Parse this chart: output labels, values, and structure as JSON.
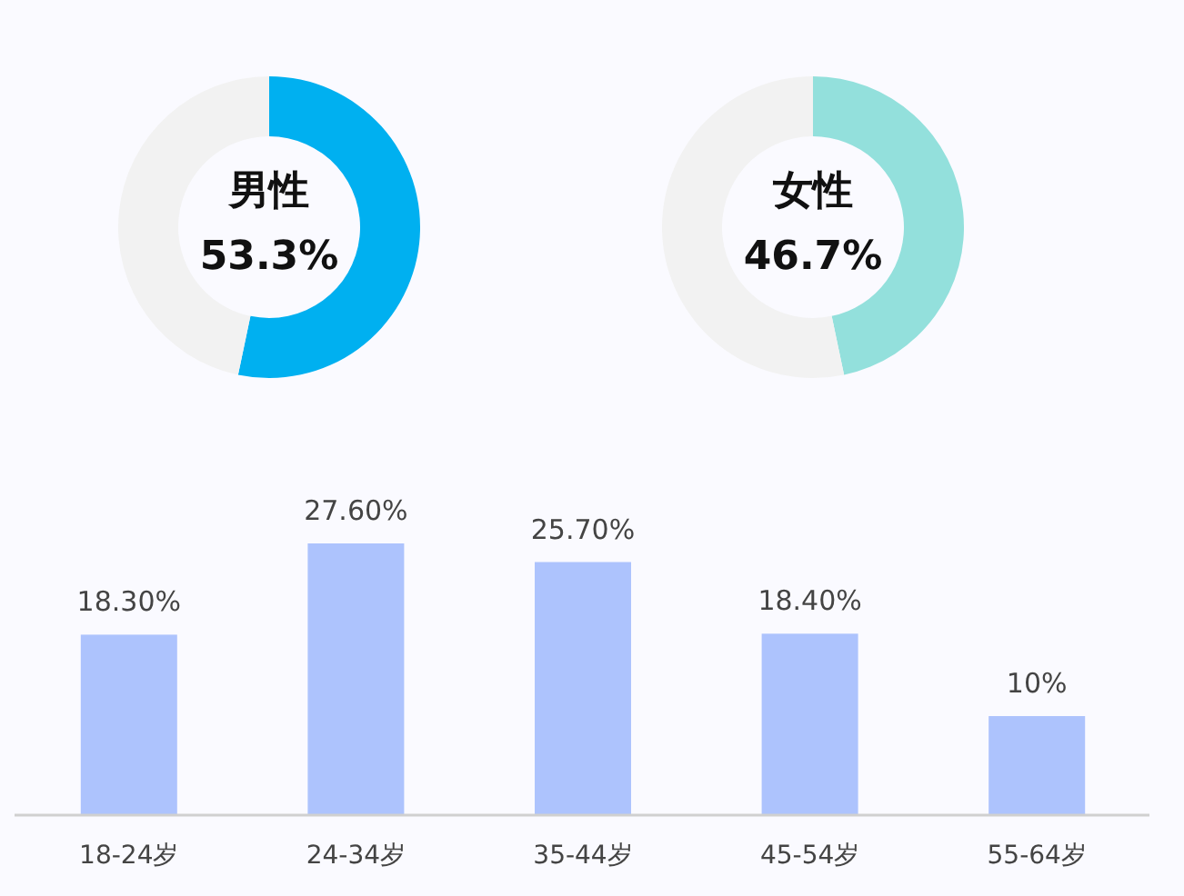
{
  "chart_data": [
    {
      "type": "donut",
      "categories": [
        "男性",
        null
      ],
      "values": [
        53.3,
        46.7
      ],
      "colors": [
        "#00b0f0",
        "#f2f2f2"
      ],
      "value_labels": [
        "53.3%",
        null
      ]
    },
    {
      "type": "donut",
      "categories": [
        "女性",
        null
      ],
      "values": [
        46.7,
        53.3
      ],
      "colors": [
        "#93e0dc",
        "#f2f2f2"
      ],
      "value_labels": [
        "46.7%",
        null
      ]
    },
    {
      "type": "bar",
      "categories": [
        "18-24岁",
        "24-34岁",
        "35-44岁",
        "45-54岁",
        "55-64岁"
      ],
      "values": [
        18.3,
        27.6,
        25.7,
        18.4,
        10
      ],
      "color": "#adc3fd",
      "value_labels": [
        "18.30%",
        "27.60%",
        "25.70%",
        "18.40%",
        "10%"
      ]
    }
  ]
}
